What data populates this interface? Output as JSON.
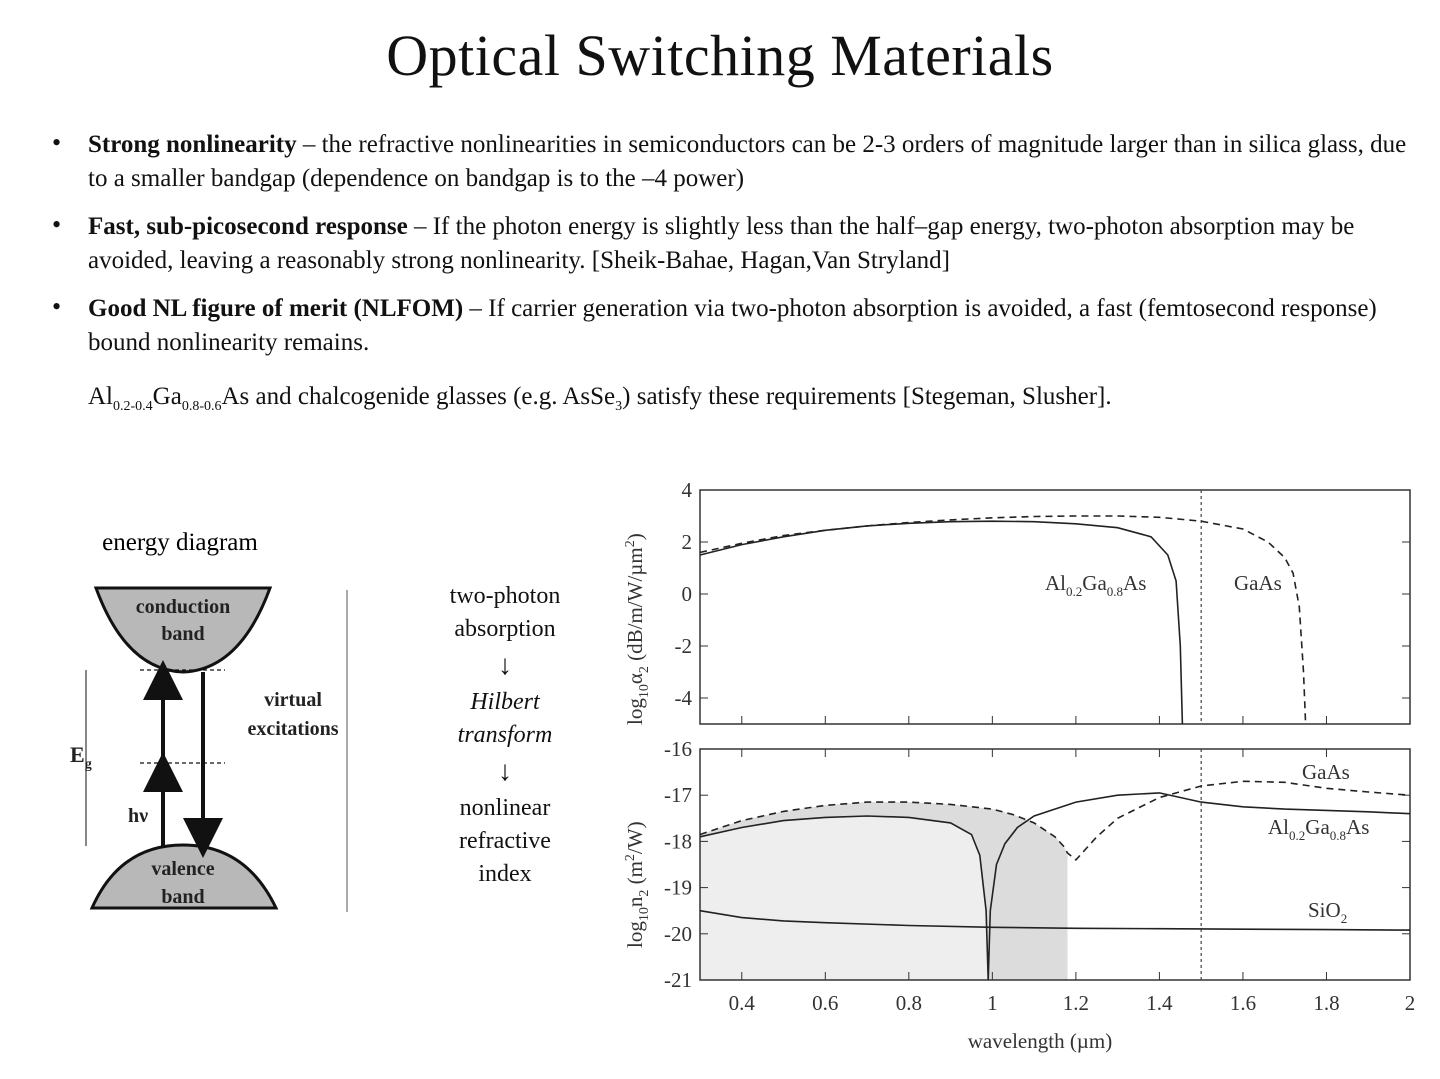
{
  "title": "Optical Switching Materials",
  "bullets": [
    {
      "bold": "Strong nonlinearity",
      "text": " – the refractive nonlinearities in semiconductors can be 2-3 orders of magnitude larger than in silica glass, due to a smaller bandgap (dependence on bandgap is  to the –4 power)"
    },
    {
      "bold": "Fast, sub-picosecond response",
      "text": " – If the photon energy is slightly less than the half–gap energy, two-photon absorption may be avoided, leaving a reasonably strong nonlinearity. [Sheik-Bahae, Hagan,Van Stryland]"
    },
    {
      "bold": "Good NL figure of merit (NLFOM)",
      "text": " – If carrier generation via two-photon absorption is avoided, a fast (femtosecond response) bound nonlinearity remains."
    }
  ],
  "materials": {
    "al": "Al",
    "al_sub": "0.2-0.4",
    "ga": "Ga",
    "ga_sub": "0.8-0.6",
    "rest": "As and chalcogenide glasses (e.g. AsSe",
    "se_sub": "3",
    "tail": ") satisfy these requirements [Stegeman, Slusher]."
  },
  "energy_diagram": {
    "title": "energy diagram",
    "conduction": [
      "conduction",
      "band"
    ],
    "valence": [
      "valence",
      "band"
    ],
    "virtual": [
      "virtual",
      "excitations"
    ],
    "eg": "E",
    "eg_sub": "g",
    "hv": "hν"
  },
  "flow": {
    "step1": [
      "two-photon",
      "absorption"
    ],
    "step2": [
      "Hilbert",
      "transform"
    ],
    "step3": [
      "nonlinear",
      "refractive",
      "index"
    ],
    "arrow": "↓"
  },
  "chart_data": [
    {
      "type": "line",
      "ylabel": "log10α2 (dB/m/W/µm²)",
      "ylabel_parts": {
        "a": "log",
        "b": "10",
        "c": "α",
        "d": "2",
        "e": " (dB/m/",
        "f": "W/µm",
        "g": "2",
        "h": ")"
      },
      "xlim": [
        0.3,
        2.0
      ],
      "ylim": [
        -5,
        4
      ],
      "yticks": [
        "4",
        "2",
        "0",
        "-2",
        "-4"
      ],
      "ytick_values": [
        4,
        2,
        0,
        -2,
        -4
      ],
      "vline_x": 1.5,
      "series": [
        {
          "name": "Al0.2Ga0.8As",
          "label_parts": [
            "Al",
            "0.2",
            "Ga",
            "0.8",
            "As"
          ],
          "style": "solid",
          "x": [
            0.3,
            0.4,
            0.5,
            0.6,
            0.7,
            0.8,
            0.9,
            1.0,
            1.1,
            1.2,
            1.3,
            1.38,
            1.42,
            1.44,
            1.45,
            1.455
          ],
          "y": [
            1.5,
            1.9,
            2.2,
            2.45,
            2.62,
            2.72,
            2.78,
            2.8,
            2.78,
            2.7,
            2.55,
            2.2,
            1.5,
            0.5,
            -2.0,
            -5.0
          ]
        },
        {
          "name": "GaAs",
          "label_parts": [
            "GaAs"
          ],
          "style": "dashed",
          "x": [
            0.3,
            0.4,
            0.5,
            0.6,
            0.7,
            0.8,
            0.9,
            1.0,
            1.1,
            1.2,
            1.3,
            1.4,
            1.5,
            1.6,
            1.66,
            1.7,
            1.72,
            1.735,
            1.745,
            1.75
          ],
          "y": [
            1.6,
            1.95,
            2.25,
            2.45,
            2.62,
            2.75,
            2.85,
            2.93,
            2.98,
            3.0,
            3.0,
            2.95,
            2.8,
            2.5,
            2.0,
            1.4,
            0.8,
            -0.5,
            -3.0,
            -5.0
          ]
        }
      ]
    },
    {
      "type": "line",
      "ylabel": "log10n2 (m²/W)",
      "ylabel_parts": {
        "a": "log",
        "b": "10",
        "c": "n",
        "d": "2",
        "e": " (m",
        "f": "2",
        "g": "/W)"
      },
      "xlabel": "wavelength (µm)",
      "xlim": [
        0.3,
        2.0
      ],
      "ylim": [
        -21,
        -16
      ],
      "xticks": [
        "0.4",
        "0.6",
        "0.8",
        "1",
        "1.2",
        "1.4",
        "1.6",
        "1.8",
        "2"
      ],
      "xtick_values": [
        0.4,
        0.6,
        0.8,
        1.0,
        1.2,
        1.4,
        1.6,
        1.8,
        2.0
      ],
      "yticks": [
        "-16",
        "-17",
        "-18",
        "-19",
        "-20",
        "-21"
      ],
      "ytick_values": [
        -16,
        -17,
        -18,
        -19,
        -20,
        -21
      ],
      "vline_x": 1.5,
      "series": [
        {
          "name": "GaAs",
          "label_parts": [
            "GaAs"
          ],
          "style": "dashed",
          "x": [
            0.3,
            0.4,
            0.5,
            0.6,
            0.7,
            0.8,
            0.9,
            1.0,
            1.05,
            1.1,
            1.15,
            1.17,
            1.18,
            1.2,
            1.25,
            1.3,
            1.4,
            1.5,
            1.6,
            1.7,
            1.8,
            1.9,
            2.0
          ],
          "y": [
            -17.85,
            -17.55,
            -17.35,
            -17.22,
            -17.15,
            -17.15,
            -17.2,
            -17.3,
            -17.42,
            -17.6,
            -17.9,
            -18.1,
            -18.25,
            -18.4,
            -17.9,
            -17.5,
            -17.05,
            -16.8,
            -16.7,
            -16.72,
            -16.85,
            -16.93,
            -17.0
          ]
        },
        {
          "name": "Al0.2Ga0.8As",
          "label_parts": [
            "Al",
            "0.2",
            "Ga",
            "0.8",
            "As"
          ],
          "style": "solid",
          "x": [
            0.3,
            0.4,
            0.5,
            0.6,
            0.7,
            0.8,
            0.9,
            0.95,
            0.97,
            0.985,
            0.99,
            0.995,
            1.01,
            1.03,
            1.06,
            1.1,
            1.2,
            1.3,
            1.4,
            1.5,
            1.6,
            1.7,
            1.8,
            1.9,
            2.0
          ],
          "y": [
            -17.9,
            -17.7,
            -17.55,
            -17.48,
            -17.45,
            -17.48,
            -17.6,
            -17.85,
            -18.3,
            -19.5,
            -21.0,
            -19.5,
            -18.5,
            -18.05,
            -17.7,
            -17.45,
            -17.15,
            -17.0,
            -16.95,
            -17.15,
            -17.25,
            -17.3,
            -17.33,
            -17.36,
            -17.4
          ]
        },
        {
          "name": "SiO2",
          "label_parts": [
            "SiO",
            "2"
          ],
          "style": "solid",
          "x": [
            0.3,
            0.4,
            0.5,
            0.6,
            0.8,
            1.0,
            1.2,
            1.4,
            1.6,
            1.8,
            2.0
          ],
          "y": [
            -19.5,
            -19.65,
            -19.72,
            -19.76,
            -19.82,
            -19.86,
            -19.88,
            -19.89,
            -19.9,
            -19.91,
            -19.92
          ]
        }
      ],
      "shaded_region": {
        "x_from": 0.3,
        "x_to": 1.18,
        "darker_from": 0.99
      }
    }
  ]
}
